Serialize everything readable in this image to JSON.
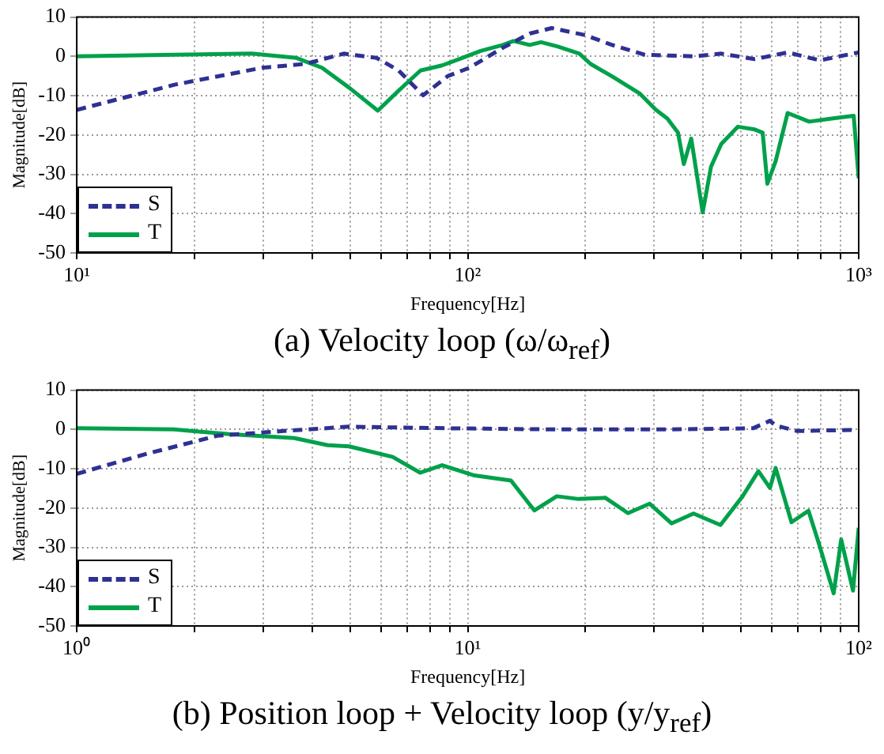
{
  "chart_data": [
    {
      "type": "line",
      "title": "(a) Velocity loop (ω/ω$_{ref}$)",
      "xlabel": "Frequency[Hz]",
      "ylabel": "Magnitude[dB]",
      "log": "x",
      "grid": true,
      "legend": "bottom left",
      "marker": "none",
      "xlim": [
        10,
        1000
      ],
      "xticks": [
        {
          "value": 10,
          "label": "10¹"
        },
        {
          "value": 20,
          "label": null
        },
        {
          "value": 30,
          "label": null
        },
        {
          "value": 40,
          "label": null
        },
        {
          "value": 50,
          "label": null
        },
        {
          "value": 60,
          "label": null
        },
        {
          "value": 70,
          "label": null
        },
        {
          "value": 80,
          "label": null
        },
        {
          "value": 90,
          "label": null
        },
        {
          "value": 100,
          "label": "10²"
        },
        {
          "value": 200,
          "label": null
        },
        {
          "value": 300,
          "label": null
        },
        {
          "value": 400,
          "label": null
        },
        {
          "value": 500,
          "label": null
        },
        {
          "value": 600,
          "label": null
        },
        {
          "value": 700,
          "label": null
        },
        {
          "value": 800,
          "label": null
        },
        {
          "value": 900,
          "label": null
        },
        {
          "value": 1000,
          "label": "10³"
        }
      ],
      "ylim": [
        -50,
        10
      ],
      "yticks": [
        -50,
        -40,
        -30,
        -20,
        -10,
        0,
        10
      ],
      "series": [
        {
          "name": "S",
          "color": "#2e3192",
          "line_style": "dashed",
          "x": [
            10,
            17.8,
            29.8,
            38.5,
            48.2,
            58.5,
            66.6,
            76.9,
            89,
            101,
            123,
            144,
            164,
            200,
            234,
            284,
            380,
            445,
            542,
            658,
            795,
            1000
          ],
          "values": [
            -13.6,
            -7.2,
            -2.9,
            -1.9,
            0.7,
            -0.4,
            -3.6,
            -9.9,
            -5,
            -2.9,
            2.2,
            5.8,
            7.2,
            5.4,
            2.9,
            0.4,
            0,
            0.7,
            -0.7,
            1.0,
            -1.0,
            1.0
          ]
        },
        {
          "name": "T",
          "color": "#00a14b",
          "line_style": "solid",
          "x": [
            10,
            17.8,
            28,
            36.5,
            42.4,
            49.8,
            58.9,
            66.6,
            75.7,
            86,
            95,
            108,
            123,
            131,
            144,
            154,
            170,
            193,
            206,
            234,
            275,
            303,
            324,
            345,
            357,
            373,
            399,
            419,
            445,
            491,
            542,
            568,
            584,
            613,
            658,
            747,
            853,
            971,
            1000
          ],
          "values": [
            0,
            0.4,
            0.7,
            -0.4,
            -2.9,
            -8,
            -13.8,
            -8.7,
            -3.6,
            -2.3,
            -0.7,
            1.4,
            2.9,
            3.9,
            2.9,
            3.6,
            2.5,
            0.7,
            -1.9,
            -5.1,
            -9.4,
            -13.6,
            -15.8,
            -19.4,
            -27.4,
            -20.9,
            -39.7,
            -28.1,
            -22.3,
            -17.9,
            -18.6,
            -19.4,
            -32.4,
            -26.7,
            -14.4,
            -16.6,
            -15.8,
            -15.1,
            -31
          ]
        }
      ]
    },
    {
      "type": "line",
      "title": "(b) Position loop + Velocity loop (y/y$_{ref}$)",
      "xlabel": "Frequency[Hz]",
      "ylabel": "Magnitude[dB]",
      "log": "x",
      "grid": true,
      "legend": "bottom left",
      "marker": "none",
      "xlim": [
        1,
        100
      ],
      "xticks": [
        {
          "value": 1,
          "label": "10⁰"
        },
        {
          "value": 2,
          "label": null
        },
        {
          "value": 3,
          "label": null
        },
        {
          "value": 4,
          "label": null
        },
        {
          "value": 5,
          "label": null
        },
        {
          "value": 6,
          "label": null
        },
        {
          "value": 7,
          "label": null
        },
        {
          "value": 8,
          "label": null
        },
        {
          "value": 9,
          "label": null
        },
        {
          "value": 10,
          "label": "10¹"
        },
        {
          "value": 20,
          "label": null
        },
        {
          "value": 30,
          "label": null
        },
        {
          "value": 40,
          "label": null
        },
        {
          "value": 50,
          "label": null
        },
        {
          "value": 60,
          "label": null
        },
        {
          "value": 70,
          "label": null
        },
        {
          "value": 80,
          "label": null
        },
        {
          "value": 90,
          "label": null
        },
        {
          "value": 100,
          "label": "10²"
        }
      ],
      "ylim": [
        -50,
        10
      ],
      "yticks": [
        -50,
        -40,
        -30,
        -20,
        -10,
        0,
        10
      ],
      "series": [
        {
          "name": "S",
          "color": "#2e3192",
          "line_style": "dashed",
          "x": [
            1,
            1.51,
            2.29,
            3.38,
            4.97,
            8.9,
            16.9,
            32,
            53.7,
            59.3,
            61.3,
            69.6,
            100
          ],
          "values": [
            -11.3,
            -6.2,
            -1.6,
            -0.4,
            0.7,
            0.3,
            0,
            0,
            0.3,
            2.2,
            1,
            -0.4,
            -0.1
          ]
        },
        {
          "name": "T",
          "color": "#00a14b",
          "line_style": "solid",
          "x": [
            1,
            1.77,
            2.45,
            3.6,
            4.38,
            4.97,
            6.43,
            7.55,
            8.6,
            10.4,
            12.9,
            14.8,
            16.9,
            19.2,
            22.5,
            25.7,
            29.2,
            33.2,
            37.8,
            44.3,
            50.4,
            55.4,
            59.3,
            61.3,
            67.3,
            74.4,
            79.3,
            86.3,
            90.2,
            96.7,
            100
          ],
          "values": [
            0.3,
            0,
            -1.2,
            -2.2,
            -4,
            -4.3,
            -7,
            -11,
            -9.1,
            -11.7,
            -13,
            -20.6,
            -17,
            -17.7,
            -17.4,
            -21.3,
            -18.9,
            -23.9,
            -21.4,
            -24.3,
            -17.1,
            -10.6,
            -14.9,
            -9.8,
            -23.6,
            -20.7,
            -29.4,
            -41.7,
            -28,
            -41,
            -25
          ]
        }
      ]
    }
  ]
}
